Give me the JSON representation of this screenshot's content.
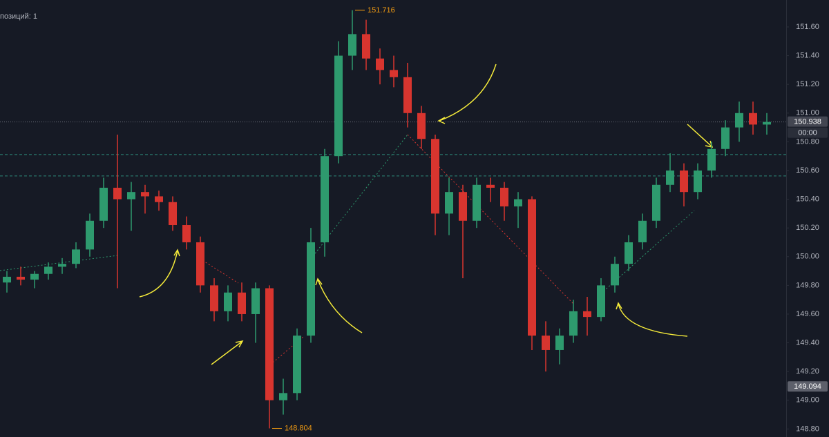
{
  "chart_data": {
    "type": "candlestick",
    "header_text": "позиций: 1",
    "up_color": "#2e9a6e",
    "down_color": "#d8352f",
    "open": [
      149.82,
      149.86,
      149.84,
      149.88,
      149.93,
      149.95,
      150.05,
      150.25,
      150.48,
      150.4,
      150.45,
      150.42,
      150.38,
      150.22,
      150.1,
      149.8,
      149.62,
      149.75,
      149.6,
      149.78,
      149.0,
      149.05,
      149.45,
      150.1,
      150.7,
      151.4,
      151.55,
      151.38,
      151.3,
      151.25,
      151.0,
      150.82,
      150.3,
      150.45,
      150.25,
      150.5,
      150.48,
      150.35,
      150.4,
      149.45,
      149.35,
      149.45,
      149.62,
      149.58,
      149.8,
      149.95,
      150.1,
      150.25,
      150.5,
      150.6,
      150.45,
      150.6,
      150.75,
      150.9,
      151.0,
      150.92
    ],
    "high": [
      149.9,
      149.93,
      149.9,
      149.96,
      149.99,
      150.1,
      150.3,
      150.55,
      150.85,
      150.52,
      150.5,
      150.46,
      150.42,
      150.28,
      150.14,
      149.85,
      149.8,
      149.82,
      149.82,
      149.8,
      149.15,
      149.5,
      150.2,
      150.75,
      151.5,
      151.716,
      151.65,
      151.45,
      151.4,
      151.35,
      151.05,
      150.85,
      150.55,
      150.5,
      150.55,
      150.55,
      150.52,
      150.45,
      150.42,
      149.55,
      149.5,
      149.7,
      149.72,
      149.85,
      150.0,
      150.15,
      150.3,
      150.55,
      150.72,
      150.65,
      150.65,
      150.8,
      150.95,
      151.08,
      151.08,
      151.0
    ],
    "low": [
      149.75,
      149.8,
      149.78,
      149.84,
      149.88,
      149.92,
      150.0,
      150.2,
      149.78,
      150.18,
      150.3,
      150.32,
      150.18,
      150.05,
      149.75,
      149.55,
      149.55,
      149.55,
      149.4,
      148.804,
      148.9,
      149.0,
      149.4,
      150.0,
      150.65,
      151.3,
      151.3,
      151.2,
      151.18,
      150.9,
      150.75,
      150.15,
      150.15,
      149.85,
      150.2,
      150.38,
      150.25,
      150.2,
      149.35,
      149.2,
      149.25,
      149.4,
      149.45,
      149.55,
      149.75,
      149.9,
      150.05,
      150.2,
      150.45,
      150.35,
      150.4,
      150.55,
      150.7,
      150.8,
      150.85,
      150.85
    ],
    "close": [
      149.86,
      149.84,
      149.88,
      149.93,
      149.95,
      150.05,
      150.25,
      150.48,
      150.4,
      150.45,
      150.42,
      150.38,
      150.22,
      150.1,
      149.8,
      149.62,
      149.75,
      149.6,
      149.78,
      149.0,
      149.05,
      149.45,
      150.1,
      150.7,
      151.4,
      151.55,
      151.38,
      151.3,
      151.25,
      151.0,
      150.82,
      150.3,
      150.45,
      150.25,
      150.5,
      150.48,
      150.35,
      150.4,
      149.45,
      149.35,
      149.45,
      149.62,
      149.58,
      149.8,
      149.95,
      150.1,
      150.25,
      150.5,
      150.6,
      150.45,
      150.6,
      150.75,
      150.9,
      151.0,
      150.92,
      150.938
    ],
    "ylim": [
      148.744,
      151.7875
    ],
    "yticks": [
      {
        "value": 148.8,
        "label": "148.80"
      },
      {
        "value": 149.0,
        "label": "149.00"
      },
      {
        "value": 149.2,
        "label": "149.20"
      },
      {
        "value": 149.4,
        "label": "149.40"
      },
      {
        "value": 149.6,
        "label": "149.60"
      },
      {
        "value": 149.8,
        "label": "149.80"
      },
      {
        "value": 150.0,
        "label": "150.00"
      },
      {
        "value": 150.2,
        "label": "150.20"
      },
      {
        "value": 150.4,
        "label": "150.40"
      },
      {
        "value": 150.6,
        "label": "150.60"
      },
      {
        "value": 150.8,
        "label": "150.80"
      },
      {
        "value": 151.0,
        "label": "151.00"
      },
      {
        "value": 151.2,
        "label": "151.20"
      },
      {
        "value": 151.4,
        "label": "151.40"
      },
      {
        "value": 151.6,
        "label": "151.60"
      }
    ],
    "last_price": 150.938,
    "countdown": "00:00",
    "marked_price": 149.094,
    "max_label": 151.716,
    "min_label": 148.804,
    "levels": [
      150.711,
      150.562
    ]
  }
}
